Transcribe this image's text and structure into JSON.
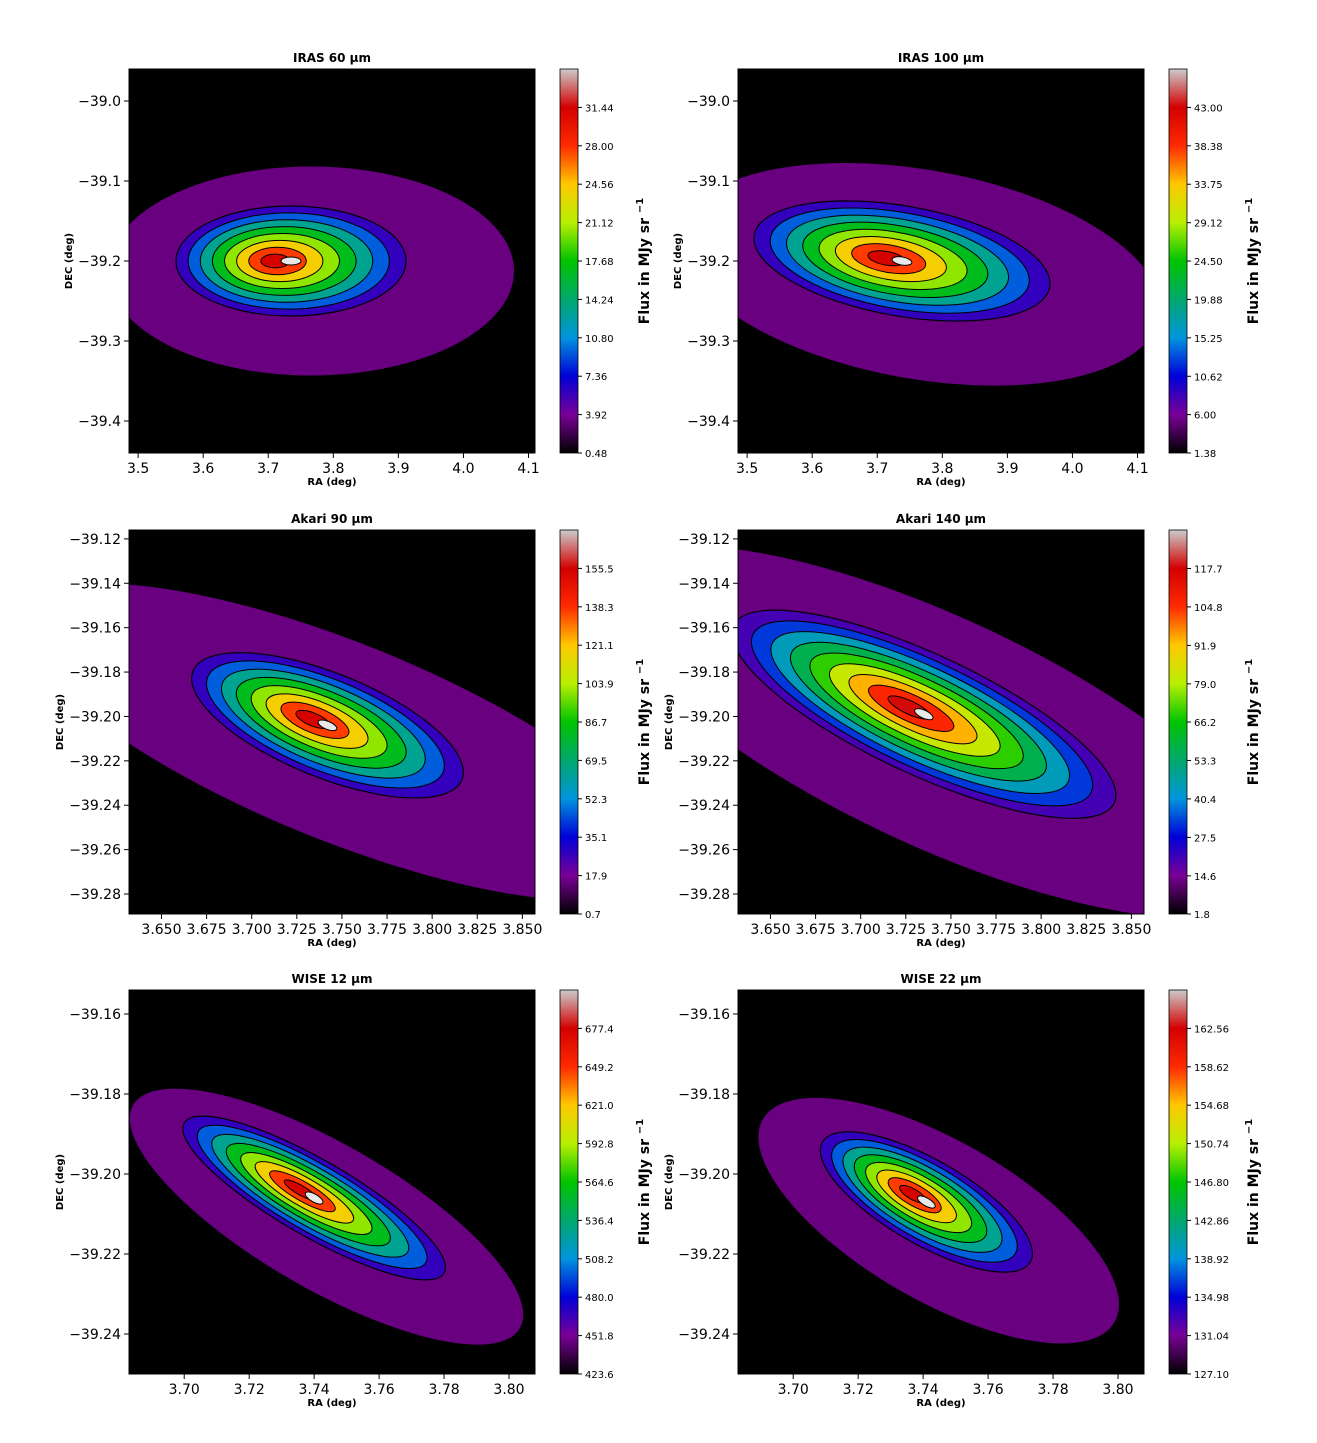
{
  "chart_data": [
    {
      "type": "heatmap",
      "title": "IRAS 60 μm",
      "xlabel": "RA (deg)",
      "ylabel": "DEC (deg)",
      "xlim": [
        3.486,
        4.11
      ],
      "ylim": [
        -39.44,
        -38.96
      ],
      "xticks": [
        "3.5",
        "3.6",
        "3.7",
        "3.8",
        "3.9",
        "4.0",
        "4.1"
      ],
      "yticks": [
        "−39.0",
        "−39.1",
        "−39.2",
        "−39.3",
        "−39.4"
      ],
      "peak": {
        "x": 3.735,
        "y": -39.2
      },
      "colorbar": {
        "label": "Flux in MJy sr",
        "label_sup": "−1",
        "min": 0.48,
        "max": 34.88,
        "ticks": [
          "0.48",
          "3.92",
          "7.36",
          "10.80",
          "14.24",
          "17.68",
          "21.12",
          "24.56",
          "28.00",
          "31.44"
        ]
      }
    },
    {
      "type": "heatmap",
      "title": "IRAS 100 μm",
      "xlabel": "RA (deg)",
      "ylabel": "DEC (deg)",
      "xlim": [
        3.486,
        4.11
      ],
      "ylim": [
        -39.44,
        -38.96
      ],
      "xticks": [
        "3.5",
        "3.6",
        "3.7",
        "3.8",
        "3.9",
        "4.0",
        "4.1"
      ],
      "yticks": [
        "−39.0",
        "−39.1",
        "−39.2",
        "−39.3",
        "−39.4"
      ],
      "peak": {
        "x": 3.738,
        "y": -39.2
      },
      "colorbar": {
        "label": "Flux in MJy sr",
        "label_sup": "−1",
        "min": 1.38,
        "max": 47.63,
        "ticks": [
          "1.38",
          "6.00",
          "10.62",
          "15.25",
          "19.88",
          "24.50",
          "29.12",
          "33.75",
          "38.38",
          "43.00"
        ]
      }
    },
    {
      "type": "heatmap",
      "title": "Akari 90 μm",
      "xlabel": "RA (deg)",
      "ylabel": "DEC (deg)",
      "xlim": [
        3.632,
        3.857
      ],
      "ylim": [
        -39.289,
        -39.116
      ],
      "xticks": [
        "3.650",
        "3.675",
        "3.700",
        "3.725",
        "3.750",
        "3.775",
        "3.800",
        "3.825",
        "3.850"
      ],
      "yticks": [
        "−39.12",
        "−39.14",
        "−39.16",
        "−39.18",
        "−39.20",
        "−39.22",
        "−39.24",
        "−39.26",
        "−39.28"
      ],
      "peak": {
        "x": 3.742,
        "y": -39.204
      },
      "colorbar": {
        "label": "Flux in MJy sr",
        "label_sup": "−1",
        "min": 0.7,
        "max": 172.7,
        "ticks": [
          "0.7",
          "17.9",
          "35.1",
          "52.3",
          "69.5",
          "86.7",
          "103.9",
          "121.1",
          "138.3",
          "155.5"
        ]
      }
    },
    {
      "type": "heatmap",
      "title": "Akari 140 μm",
      "xlabel": "RA (deg)",
      "ylabel": "DEC (deg)",
      "xlim": [
        3.632,
        3.857
      ],
      "ylim": [
        -39.289,
        -39.116
      ],
      "xticks": [
        "3.650",
        "3.675",
        "3.700",
        "3.725",
        "3.750",
        "3.775",
        "3.800",
        "3.825",
        "3.850"
      ],
      "yticks": [
        "−39.12",
        "−39.14",
        "−39.16",
        "−39.18",
        "−39.20",
        "−39.22",
        "−39.24",
        "−39.26",
        "−39.28"
      ],
      "peak": {
        "x": 3.735,
        "y": -39.199
      },
      "colorbar": {
        "label": "Flux in MJy sr",
        "label_sup": "−1",
        "min": 1.8,
        "max": 130.6,
        "ticks": [
          "1.8",
          "14.6",
          "27.5",
          "40.4",
          "53.3",
          "66.2",
          "79.0",
          "91.9",
          "104.8",
          "117.7"
        ]
      }
    },
    {
      "type": "heatmap",
      "title": "WISE 12 μm",
      "xlabel": "RA (deg)",
      "ylabel": "DEC (deg)",
      "xlim": [
        3.683,
        3.808
      ],
      "ylim": [
        -39.25,
        -39.154
      ],
      "xticks": [
        "3.70",
        "3.72",
        "3.74",
        "3.76",
        "3.78",
        "3.80"
      ],
      "yticks": [
        "−39.16",
        "−39.18",
        "−39.20",
        "−39.22",
        "−39.24"
      ],
      "peak": {
        "x": 3.74,
        "y": -39.206
      },
      "colorbar": {
        "label": "Flux in MJy sr",
        "label_sup": "−1",
        "min": 423.6,
        "max": 705.6,
        "ticks": [
          "423.6",
          "451.8",
          "480.0",
          "508.2",
          "536.4",
          "564.6",
          "592.8",
          "621.0",
          "649.2",
          "677.4"
        ]
      }
    },
    {
      "type": "heatmap",
      "title": "WISE 22 μm",
      "xlabel": "RA (deg)",
      "ylabel": "DEC (deg)",
      "xlim": [
        3.683,
        3.808
      ],
      "ylim": [
        -39.25,
        -39.154
      ],
      "xticks": [
        "3.70",
        "3.72",
        "3.74",
        "3.76",
        "3.78",
        "3.80"
      ],
      "yticks": [
        "−39.16",
        "−39.18",
        "−39.20",
        "−39.22",
        "−39.24"
      ],
      "peak": {
        "x": 3.741,
        "y": -39.207
      },
      "colorbar": {
        "label": "Flux in MJy sr",
        "label_sup": "−1",
        "min": 127.1,
        "max": 166.5,
        "ticks": [
          "127.10",
          "131.04",
          "134.98",
          "138.92",
          "142.86",
          "146.80",
          "150.74",
          "154.68",
          "158.62",
          "162.56"
        ]
      }
    }
  ],
  "colormap": [
    "#000000",
    "#7a0097",
    "#0000d8",
    "#0094dd",
    "#00a86d",
    "#00c400",
    "#b8ef00",
    "#ffc800",
    "#ff2a00",
    "#d40000",
    "#cccccc"
  ]
}
